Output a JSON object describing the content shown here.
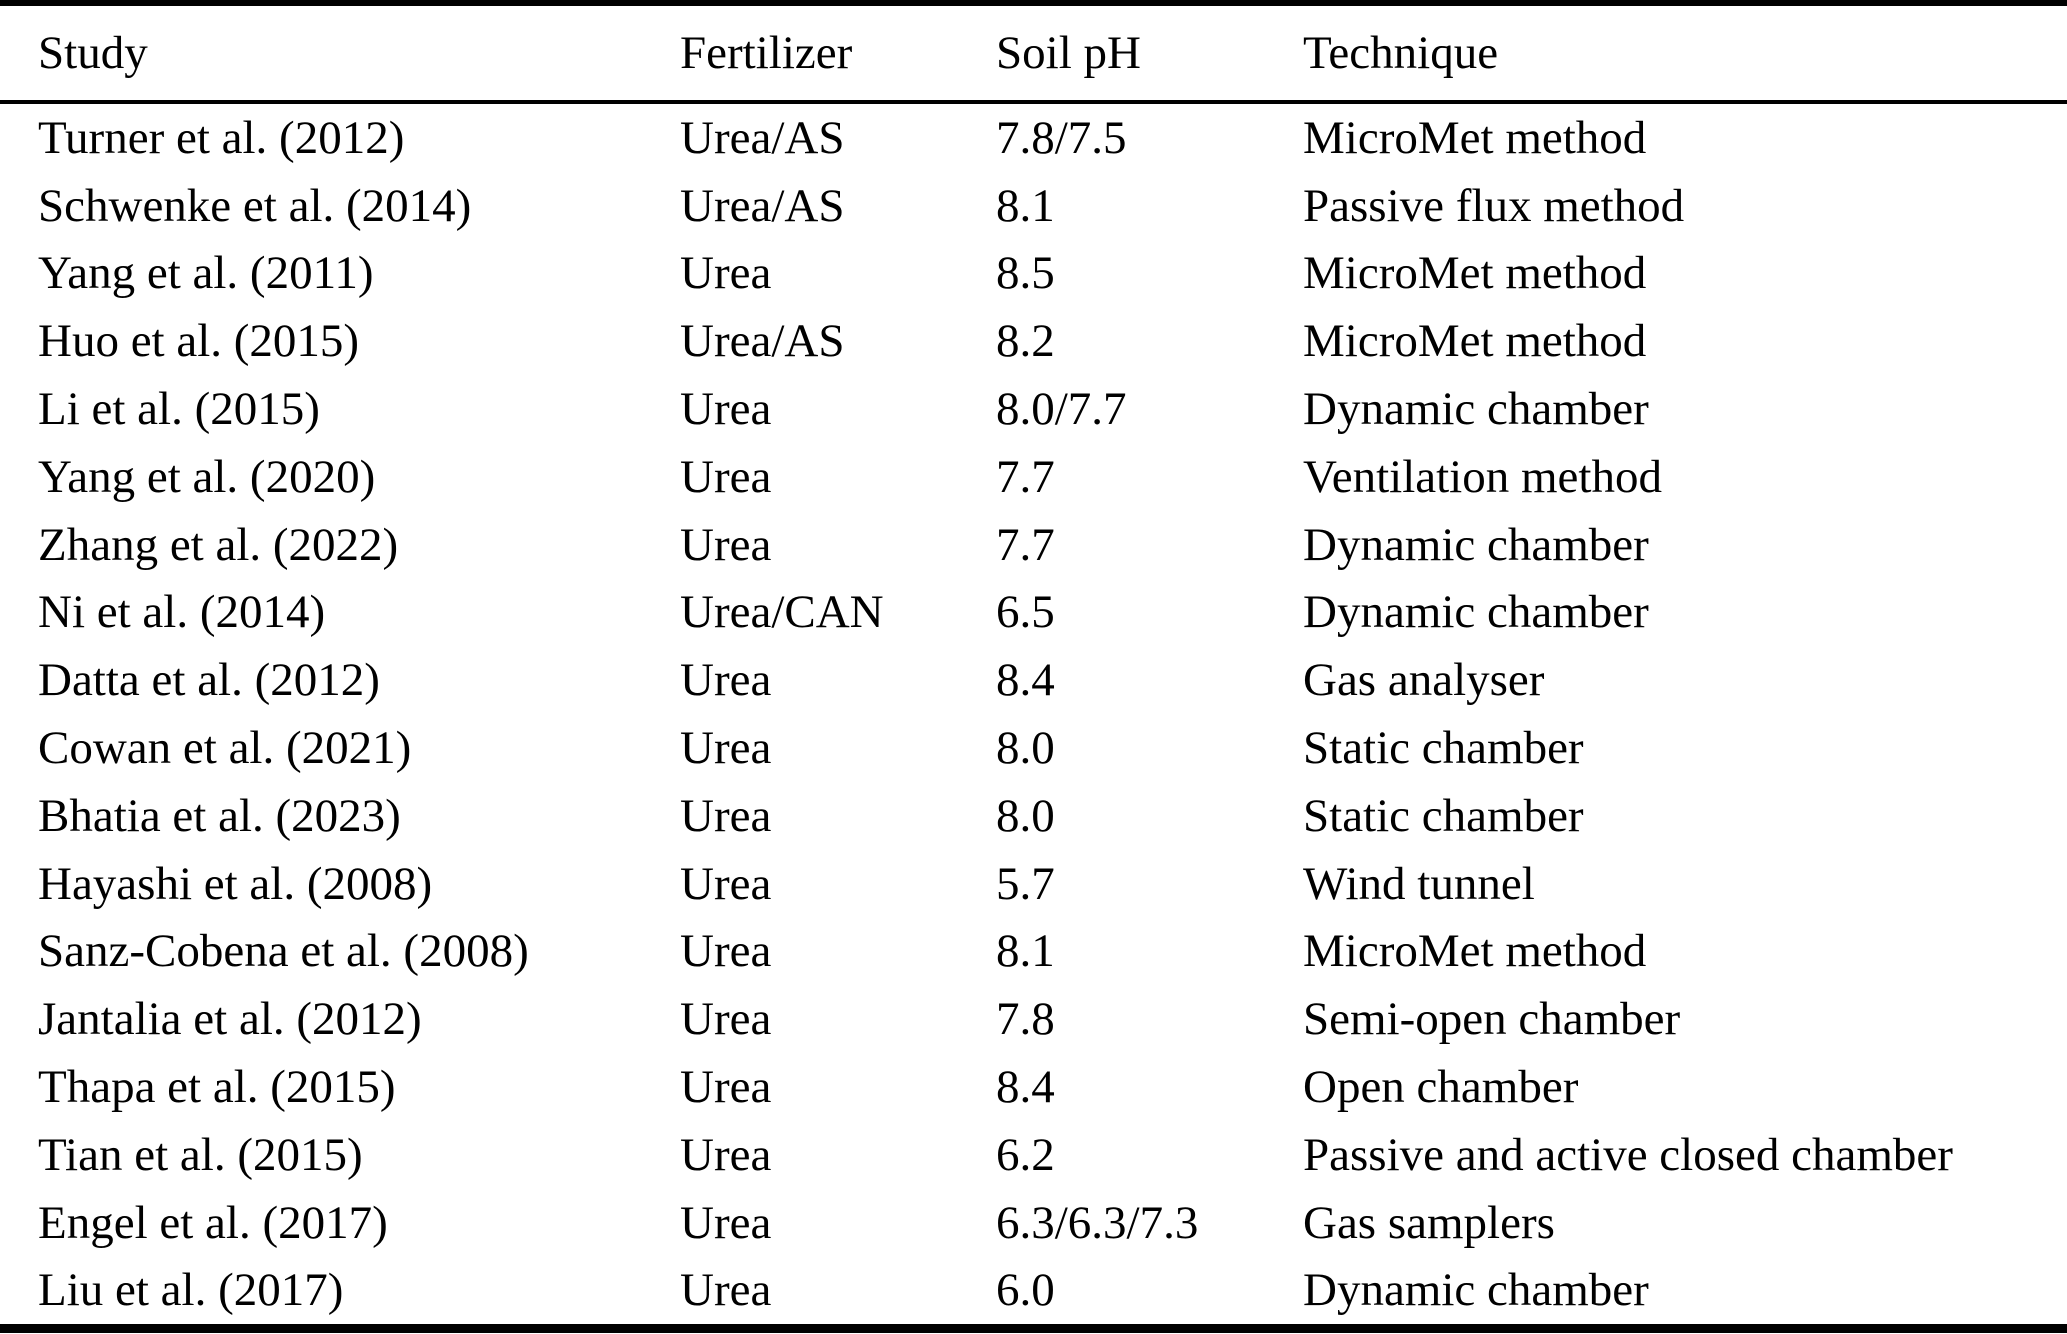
{
  "table": {
    "columns": [
      "Study",
      "Fertilizer",
      "Soil pH",
      "Technique"
    ],
    "rows": [
      [
        "Turner et al. (2012)",
        "Urea/AS",
        "7.8/7.5",
        "MicroMet method"
      ],
      [
        "Schwenke et al. (2014)",
        "Urea/AS",
        "8.1",
        "Passive flux method"
      ],
      [
        "Yang et al. (2011)",
        "Urea",
        "8.5",
        "MicroMet method"
      ],
      [
        "Huo et al. (2015)",
        "Urea/AS",
        "8.2",
        "MicroMet method"
      ],
      [
        "Li et al. (2015)",
        "Urea",
        "8.0/7.7",
        "Dynamic chamber"
      ],
      [
        "Yang et al. (2020)",
        "Urea",
        "7.7",
        "Ventilation method"
      ],
      [
        "Zhang et al. (2022)",
        "Urea",
        "7.7",
        "Dynamic chamber"
      ],
      [
        "Ni et al. (2014)",
        "Urea/CAN",
        "6.5",
        "Dynamic chamber"
      ],
      [
        "Datta et al. (2012)",
        "Urea",
        "8.4",
        "Gas analyser"
      ],
      [
        "Cowan et al. (2021)",
        "Urea",
        "8.0",
        "Static chamber"
      ],
      [
        "Bhatia et al. (2023)",
        "Urea",
        "8.0",
        "Static chamber"
      ],
      [
        "Hayashi et al. (2008)",
        "Urea",
        "5.7",
        "Wind tunnel"
      ],
      [
        "Sanz-Cobena et al. (2008)",
        "Urea",
        "8.1",
        "MicroMet method"
      ],
      [
        "Jantalia et al. (2012)",
        "Urea",
        "7.8",
        "Semi-open chamber"
      ],
      [
        "Thapa et al. (2015)",
        "Urea",
        "8.4",
        "Open chamber"
      ],
      [
        "Tian et al. (2015)",
        "Urea",
        "6.2",
        "Passive and active closed chamber"
      ],
      [
        "Engel et al. (2017)",
        "Urea",
        "6.3/6.3/7.3",
        "Gas samplers"
      ],
      [
        "Liu et al. (2017)",
        "Urea",
        "6.0",
        "Dynamic chamber"
      ]
    ],
    "colors": {
      "text": "#000000",
      "background": "#ffffff",
      "rule": "#000000"
    }
  }
}
